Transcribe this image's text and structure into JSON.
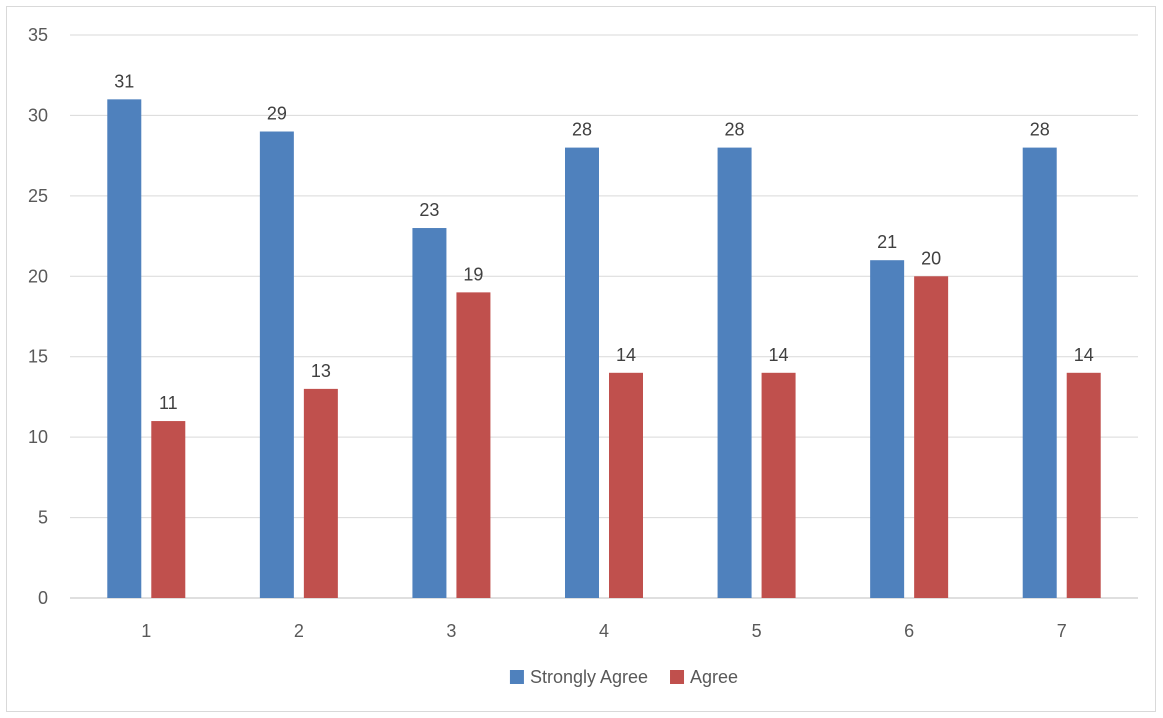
{
  "chart_data": {
    "type": "bar",
    "categories": [
      "1",
      "2",
      "3",
      "4",
      "5",
      "6",
      "7"
    ],
    "series": [
      {
        "name": "Strongly Agree",
        "values": [
          31,
          29,
          23,
          28,
          28,
          21,
          28
        ],
        "color": "#4f81bd"
      },
      {
        "name": "Agree",
        "values": [
          11,
          13,
          19,
          14,
          14,
          20,
          14
        ],
        "color": "#c0504d"
      }
    ],
    "title": "",
    "xlabel": "",
    "ylabel": "",
    "ylim": [
      0,
      35
    ],
    "yticks": [
      0,
      5,
      10,
      15,
      20,
      25,
      30,
      35
    ],
    "grid": true,
    "legend_position": "bottom",
    "data_labels": true
  }
}
